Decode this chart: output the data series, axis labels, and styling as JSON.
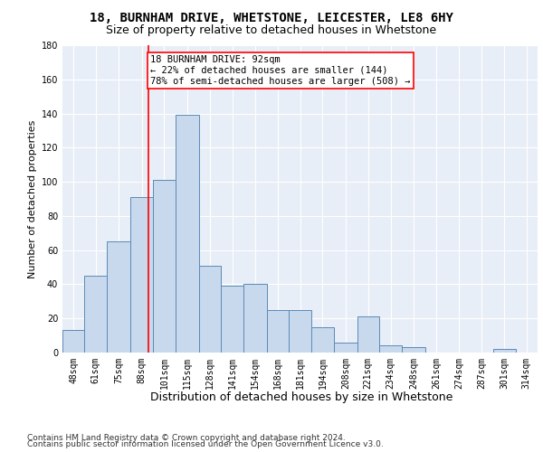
{
  "title1": "18, BURNHAM DRIVE, WHETSTONE, LEICESTER, LE8 6HY",
  "title2": "Size of property relative to detached houses in Whetstone",
  "xlabel": "Distribution of detached houses by size in Whetstone",
  "ylabel": "Number of detached properties",
  "bar_color": "#c9d9ed",
  "bar_edge_color": "#5b8ab5",
  "grid_color": "#ffffff",
  "bg_color": "#e8eef7",
  "annotation_line1": "18 BURNHAM DRIVE: 92sqm",
  "annotation_line2": "← 22% of detached houses are smaller (144)",
  "annotation_line3": "78% of semi-detached houses are larger (508) →",
  "vline_x": 92,
  "categories": [
    "48sqm",
    "61sqm",
    "75sqm",
    "88sqm",
    "101sqm",
    "115sqm",
    "128sqm",
    "141sqm",
    "154sqm",
    "168sqm",
    "181sqm",
    "194sqm",
    "208sqm",
    "221sqm",
    "234sqm",
    "248sqm",
    "261sqm",
    "274sqm",
    "287sqm",
    "301sqm",
    "314sqm"
  ],
  "bin_edges": [
    41.5,
    54.5,
    67.5,
    81.5,
    94.5,
    108.0,
    121.5,
    134.5,
    148.0,
    161.5,
    174.5,
    187.5,
    201.0,
    214.5,
    227.5,
    241.0,
    254.5,
    267.5,
    281.0,
    294.5,
    307.5,
    320.5
  ],
  "values": [
    13,
    45,
    65,
    91,
    101,
    139,
    51,
    39,
    40,
    25,
    25,
    15,
    6,
    21,
    4,
    3,
    0,
    0,
    0,
    2,
    0
  ],
  "ylim": [
    0,
    180
  ],
  "yticks": [
    0,
    20,
    40,
    60,
    80,
    100,
    120,
    140,
    160,
    180
  ],
  "footer1": "Contains HM Land Registry data © Crown copyright and database right 2024.",
  "footer2": "Contains public sector information licensed under the Open Government Licence v3.0.",
  "title1_fontsize": 10,
  "title2_fontsize": 9,
  "annotation_fontsize": 7.5,
  "ylabel_fontsize": 8,
  "xlabel_fontsize": 9,
  "tick_fontsize": 7,
  "footer_fontsize": 6.5
}
